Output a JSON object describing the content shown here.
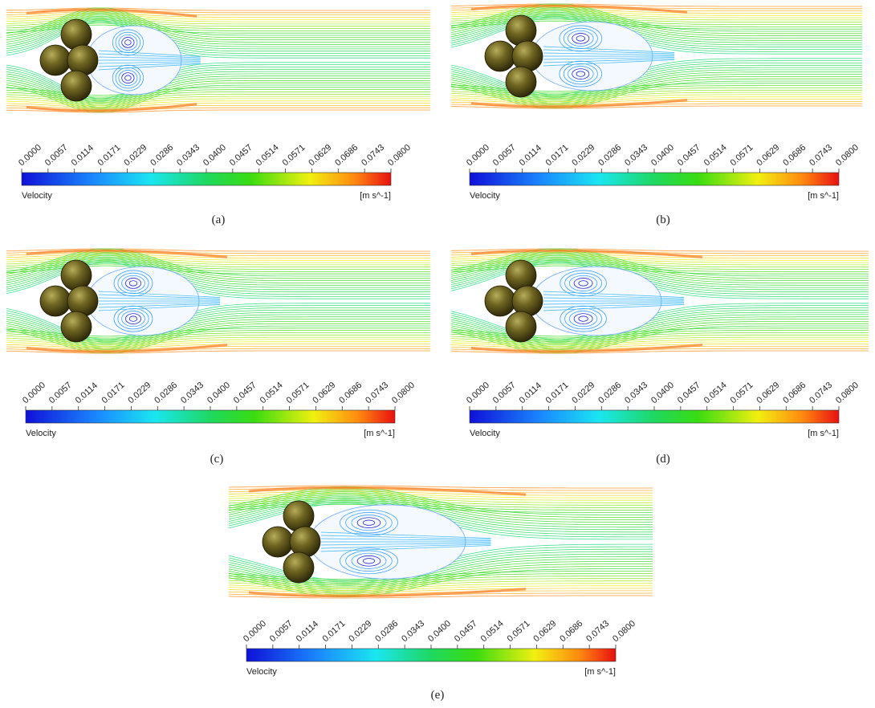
{
  "panels": [
    {
      "label": "(a)",
      "colorbar": {
        "ticks": [
          "0.0000",
          "0.0057",
          "0.0114",
          "0.0171",
          "0.0229",
          "0.0286",
          "0.0343",
          "0.0400",
          "0.0457",
          "0.0514",
          "0.0571",
          "0.0629",
          "0.0686",
          "0.0743",
          "0.0800"
        ],
        "title": "Velocity",
        "unit": "[m s^-1]"
      }
    },
    {
      "label": "(b)",
      "colorbar": {
        "ticks": [
          "0.0000",
          "0.0057",
          "0.0114",
          "0.0171",
          "0.0229",
          "0.0286",
          "0.0343",
          "0.0400",
          "0.0457",
          "0.0514",
          "0.0571",
          "0.0629",
          "0.0686",
          "0.0743",
          "0.0800"
        ],
        "title": "Velocity",
        "unit": "[m s^-1]"
      }
    },
    {
      "label": "(c)",
      "colorbar": {
        "ticks": [
          "0.0000",
          "0.0057",
          "0.0114",
          "0.0171",
          "0.0229",
          "0.0286",
          "0.0343",
          "0.0400",
          "0.0457",
          "0.0514",
          "0.0571",
          "0.0629",
          "0.0686",
          "0.0743",
          "0.0800"
        ],
        "title": "Velocity",
        "unit": "[m s^-1]"
      }
    },
    {
      "label": "(d)",
      "colorbar": {
        "ticks": [
          "0.0000",
          "0.0057",
          "0.0114",
          "0.0171",
          "0.0229",
          "0.0286",
          "0.0343",
          "0.0400",
          "0.0457",
          "0.0514",
          "0.0571",
          "0.0629",
          "0.0686",
          "0.0743",
          "0.0800"
        ],
        "title": "Velocity",
        "unit": "[m s^-1]"
      }
    },
    {
      "label": "(e)",
      "colorbar": {
        "ticks": [
          "0.0000",
          "0.0057",
          "0.0114",
          "0.0171",
          "0.0229",
          "0.0286",
          "0.0343",
          "0.0400",
          "0.0457",
          "0.0514",
          "0.0571",
          "0.0629",
          "0.0686",
          "0.0743",
          "0.0800"
        ],
        "title": "Velocity",
        "unit": "[m s^-1]"
      }
    }
  ]
}
